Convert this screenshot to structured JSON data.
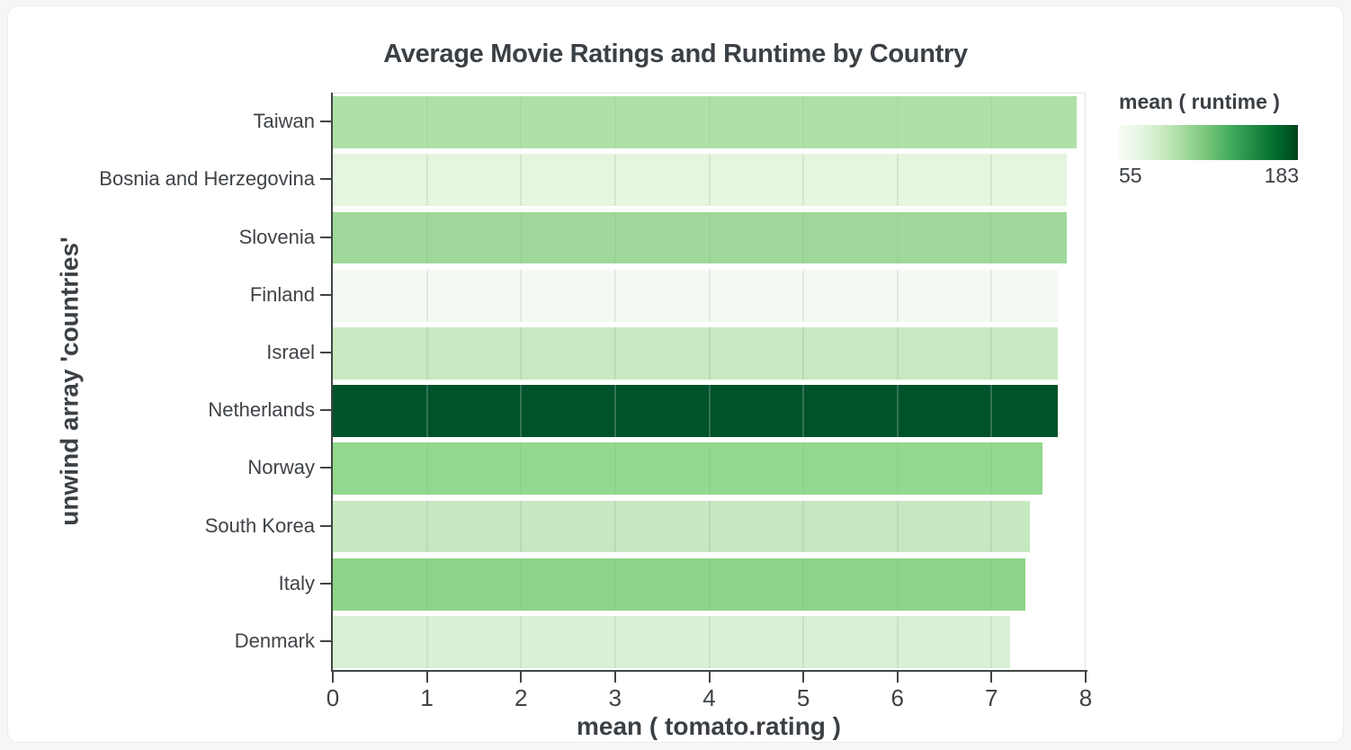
{
  "chart_data": {
    "type": "bar",
    "orientation": "horizontal",
    "title": "Average Movie Ratings and Runtime by Country",
    "xlabel": "mean ( tomato.rating )",
    "ylabel": "unwind array 'countries'",
    "xlim": [
      0,
      8
    ],
    "x_ticks": [
      0,
      1,
      2,
      3,
      4,
      5,
      6,
      7,
      8
    ],
    "grid": true,
    "categories": [
      "Taiwan",
      "Bosnia and Herzegovina",
      "Slovenia",
      "Finland",
      "Israel",
      "Netherlands",
      "Norway",
      "South Korea",
      "Italy",
      "Denmark"
    ],
    "values": [
      7.9,
      7.8,
      7.8,
      7.7,
      7.7,
      7.7,
      7.54,
      7.41,
      7.36,
      7.2
    ],
    "bar_colors": [
      "#aee0a8",
      "#e4f5e0",
      "#9fd89a",
      "#f4faf1",
      "#c8e9c2",
      "#00522a",
      "#93d88f",
      "#c6e8c0",
      "#8ed48a",
      "#d8f0d3"
    ],
    "color_legend": {
      "title": "mean ( runtime )",
      "min": 55,
      "max": 183,
      "scheme": "greens",
      "gradient_stops": [
        "#f7fcf5",
        "#e5f5e0",
        "#c7e9c0",
        "#a1d99b",
        "#74c476",
        "#41ab5d",
        "#238b45",
        "#006d2c",
        "#00441b"
      ]
    }
  }
}
